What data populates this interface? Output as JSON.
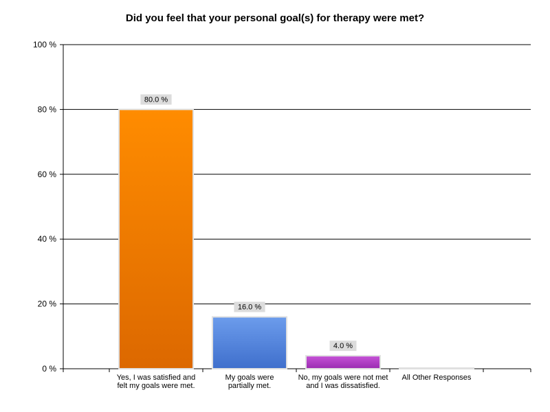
{
  "chart_data": {
    "type": "bar",
    "title": "Did you feel that your personal goal(s) for therapy were met?",
    "xlabel": "",
    "ylabel": "",
    "ylim": [
      0,
      100
    ],
    "y_ticks": [
      0,
      20,
      40,
      60,
      80,
      100
    ],
    "y_tick_labels": [
      "0 %",
      "20 %",
      "40 %",
      "60 %",
      "80 %",
      "100 %"
    ],
    "grid": true,
    "categories": [
      [
        "Yes, I was satisfied and",
        "felt my goals were met."
      ],
      [
        "My goals were",
        "partially met."
      ],
      [
        "No, my goals were not met",
        "and I was dissatisfied."
      ],
      [
        "All Other Responses"
      ]
    ],
    "values": [
      80.0,
      16.0,
      4.0,
      0.0
    ],
    "data_labels": [
      "80.0 %",
      "16.0 %",
      "4.0 %",
      ""
    ],
    "colors": [
      {
        "top": "#ff8c00",
        "bottom": "#dc6800"
      },
      {
        "top": "#6c9cec",
        "bottom": "#3f6fcc"
      },
      {
        "top": "#c653d8",
        "bottom": "#9a2cb0"
      },
      {
        "top": "#d0d0d0",
        "bottom": "#b8b8b8"
      }
    ]
  }
}
